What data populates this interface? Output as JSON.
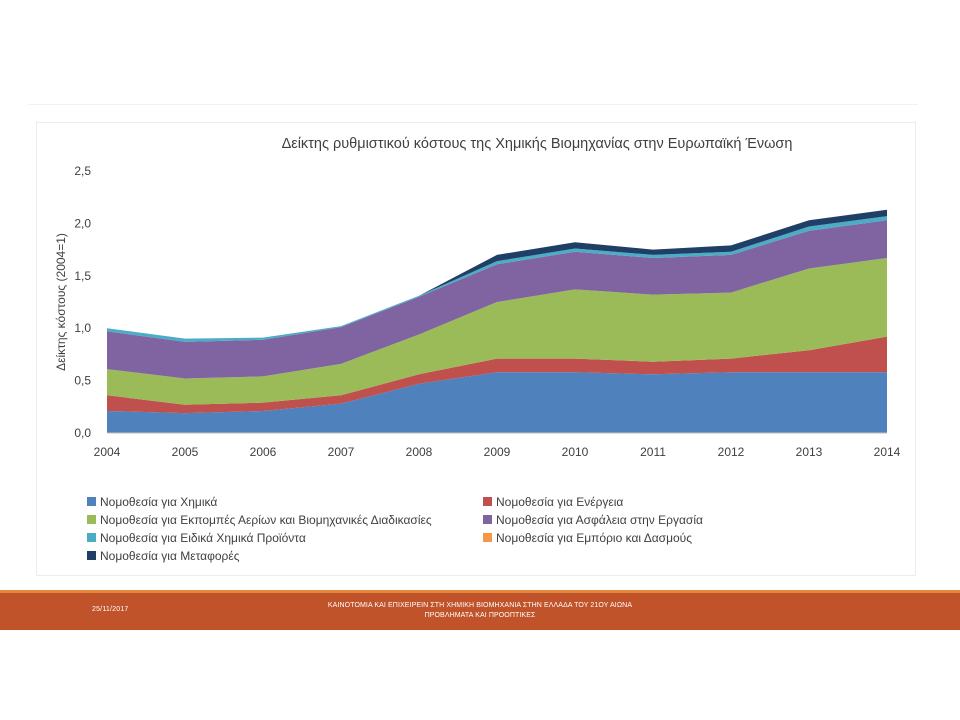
{
  "chart_data": {
    "type": "area",
    "stacked": true,
    "title": "Δείκτης ρυθμιστικού κόστους της Χημικής Βιομηχανίας στην Ευρωπαϊκή Ένωση",
    "xlabel": "",
    "ylabel": "Δείκτης κόστους (2004=1)",
    "ylim": [
      0,
      2.5
    ],
    "yticks": [
      "0,0",
      "0,5",
      "1,0",
      "1,5",
      "2,0",
      "2,5"
    ],
    "ytick_values": [
      0,
      0.5,
      1.0,
      1.5,
      2.0,
      2.5
    ],
    "x": [
      "2004",
      "2005",
      "2006",
      "2007",
      "2008",
      "2009",
      "2010",
      "2011",
      "2012",
      "2013",
      "2014"
    ],
    "grid": false,
    "legend_position": "bottom",
    "series": [
      {
        "name": "Νομοθεσία για Χημικά",
        "color": "#4f81bd",
        "values": [
          0.21,
          0.19,
          0.21,
          0.28,
          0.47,
          0.58,
          0.58,
          0.56,
          0.58,
          0.58,
          0.58
        ]
      },
      {
        "name": "Νομοθεσία για Ενέργεια",
        "color": "#c0504d",
        "values": [
          0.15,
          0.08,
          0.08,
          0.08,
          0.09,
          0.13,
          0.13,
          0.12,
          0.13,
          0.21,
          0.34
        ]
      },
      {
        "name": "Νομοθεσία για Εκπομπές Αερίων και Βιομηχανικές Διαδικασίες",
        "color": "#9bbb59",
        "values": [
          0.25,
          0.25,
          0.25,
          0.3,
          0.38,
          0.54,
          0.66,
          0.64,
          0.63,
          0.78,
          0.75
        ]
      },
      {
        "name": "Νομοθεσία για Ασφάλεια στην Εργασία",
        "color": "#8064a2",
        "values": [
          0.36,
          0.35,
          0.35,
          0.35,
          0.36,
          0.36,
          0.36,
          0.35,
          0.36,
          0.36,
          0.36
        ]
      },
      {
        "name": "Νομοθεσία για Ειδικά Χημικά Προϊόντα",
        "color": "#4bacc6",
        "values": [
          0.03,
          0.03,
          0.02,
          0.01,
          0.01,
          0.03,
          0.03,
          0.03,
          0.03,
          0.04,
          0.04
        ]
      },
      {
        "name": "Νομοθεσία για Εμπόριο και Δασμούς",
        "color": "#f79646",
        "values": [
          0.0,
          0.0,
          0.0,
          0.0,
          0.0,
          0.0,
          0.0,
          0.0,
          0.0,
          0.0,
          0.0
        ]
      },
      {
        "name": "Νομοθεσία για Μεταφορές",
        "color": "#1f3f66",
        "values": [
          0.0,
          0.0,
          0.0,
          0.0,
          0.0,
          0.06,
          0.06,
          0.05,
          0.06,
          0.06,
          0.06
        ]
      }
    ]
  },
  "footer": {
    "date": "25/11/2017",
    "title_line1": "ΚΑΙΝΟΤΟΜΙΑ ΚΑΙ ΕΠΙΧΕΙΡΕΙΝ ΣΤΗ ΧΗΜΙΚΗ ΒΙΟΜΗΧΑΝΙΑ ΣΤΗΝ ΕΛΛΑΔΑ ΤΟΥ 21ΟΥ ΑΙΩΝΑ",
    "title_line2": "ΠΡΟΒΛΗΜΑΤΑ ΚΑΙ ΠΡΟΟΠΤΙΚΕΣ"
  }
}
